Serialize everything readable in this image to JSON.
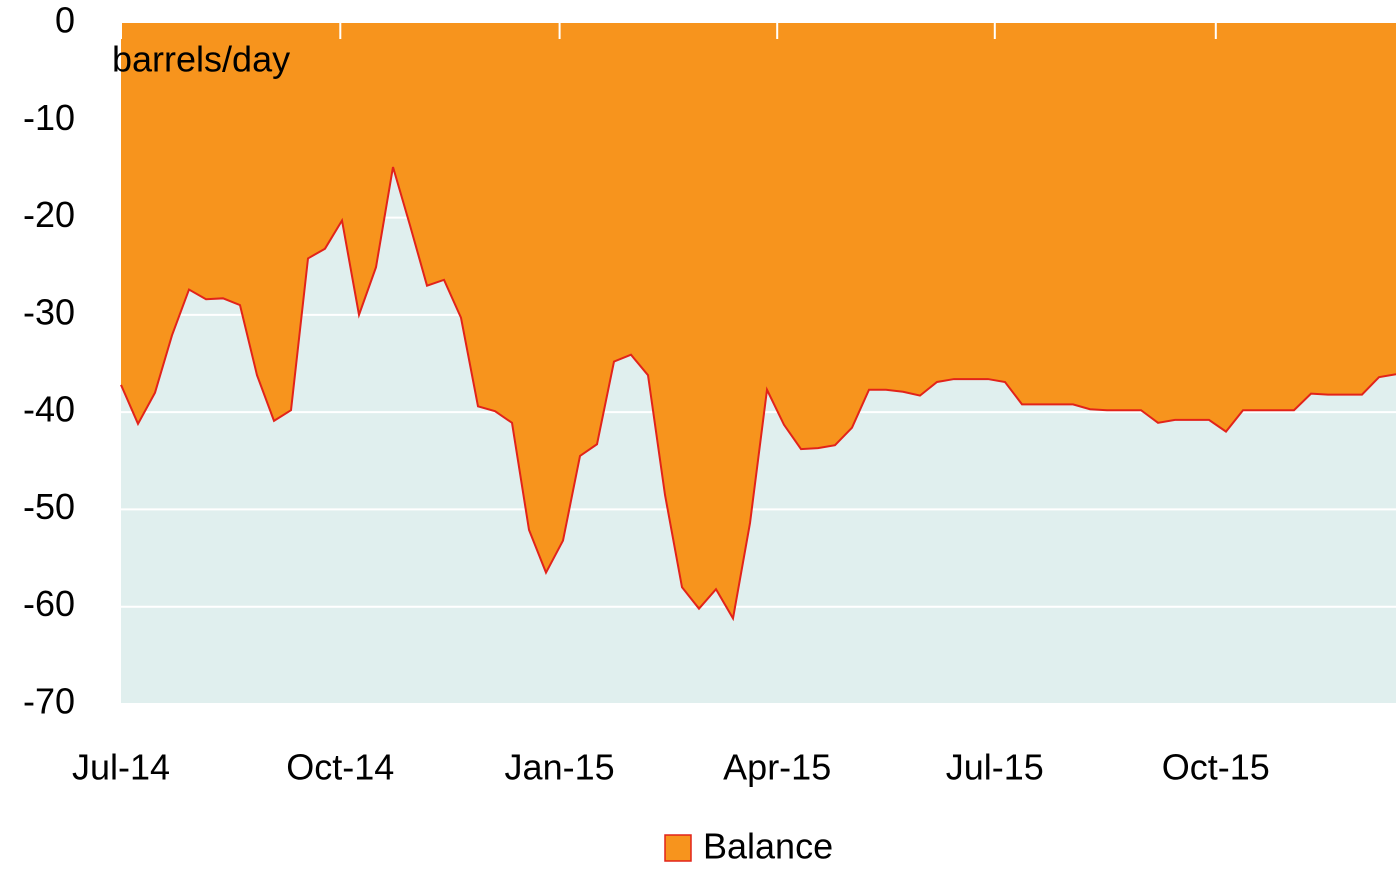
{
  "chart_data": {
    "type": "area",
    "annotations": [
      "barrels/day"
    ],
    "x": [
      0,
      1,
      2,
      3,
      4,
      5,
      6,
      7,
      8,
      9,
      10,
      11,
      12,
      13,
      14,
      15,
      16,
      17,
      18,
      19,
      20,
      21,
      22,
      23,
      24,
      25,
      26,
      27,
      28,
      29,
      30,
      31,
      32,
      33,
      34,
      35,
      36,
      37,
      38,
      39,
      40,
      41,
      42,
      43,
      44,
      45,
      46,
      47,
      48,
      49,
      50,
      51,
      52,
      53,
      54,
      55,
      56,
      57,
      58,
      59,
      60,
      61,
      62,
      63,
      64,
      65,
      66,
      67,
      68,
      69,
      70,
      71,
      72,
      73,
      74,
      75
    ],
    "series": [
      {
        "name": "Balance",
        "color": "#f7941d",
        "line_color": "#e2231a",
        "values": [
          -37.2,
          -41.2,
          -38.0,
          -32.1,
          -27.4,
          -28.4,
          -28.3,
          -29.0,
          -36.2,
          -40.9,
          -39.8,
          -24.2,
          -23.2,
          -20.3,
          -30.0,
          -25.1,
          -14.8,
          -20.8,
          -27.0,
          -26.4,
          -30.3,
          -39.4,
          -39.9,
          -41.1,
          -52.1,
          -56.5,
          -53.2,
          -44.5,
          -43.3,
          -34.8,
          -34.1,
          -36.2,
          -48.5,
          -58.0,
          -60.2,
          -58.2,
          -61.2,
          -51.4,
          -37.7,
          -41.3,
          -43.8,
          -43.7,
          -43.4,
          -41.6,
          -37.7,
          -37.7,
          -37.9,
          -38.3,
          -36.9,
          -36.6,
          -36.6,
          -36.6,
          -36.9,
          -39.2,
          -39.2,
          -39.2,
          -39.2,
          -39.7,
          -39.8,
          -39.8,
          -39.8,
          -41.1,
          -40.8,
          -40.8,
          -40.8,
          -42.0,
          -39.8,
          -39.8,
          -39.8,
          -39.8,
          -38.1,
          -38.2,
          -38.2,
          -38.2,
          -36.4,
          -36.1
        ]
      }
    ],
    "xlim": [
      0,
      75
    ],
    "xticks": [
      {
        "value": 0,
        "label": "Jul-14"
      },
      {
        "value": 12.9,
        "label": "Oct-14"
      },
      {
        "value": 25.8,
        "label": "Jan-15"
      },
      {
        "value": 38.6,
        "label": "Apr-15"
      },
      {
        "value": 51.4,
        "label": "Jul-15"
      },
      {
        "value": 64.4,
        "label": "Oct-15"
      }
    ],
    "ylim": [
      -70,
      0
    ],
    "yticks": [
      0,
      -10,
      -20,
      -30,
      -40,
      -50,
      -60,
      -70
    ],
    "grid": true,
    "legend": "bottom",
    "background": "#e0efee"
  }
}
